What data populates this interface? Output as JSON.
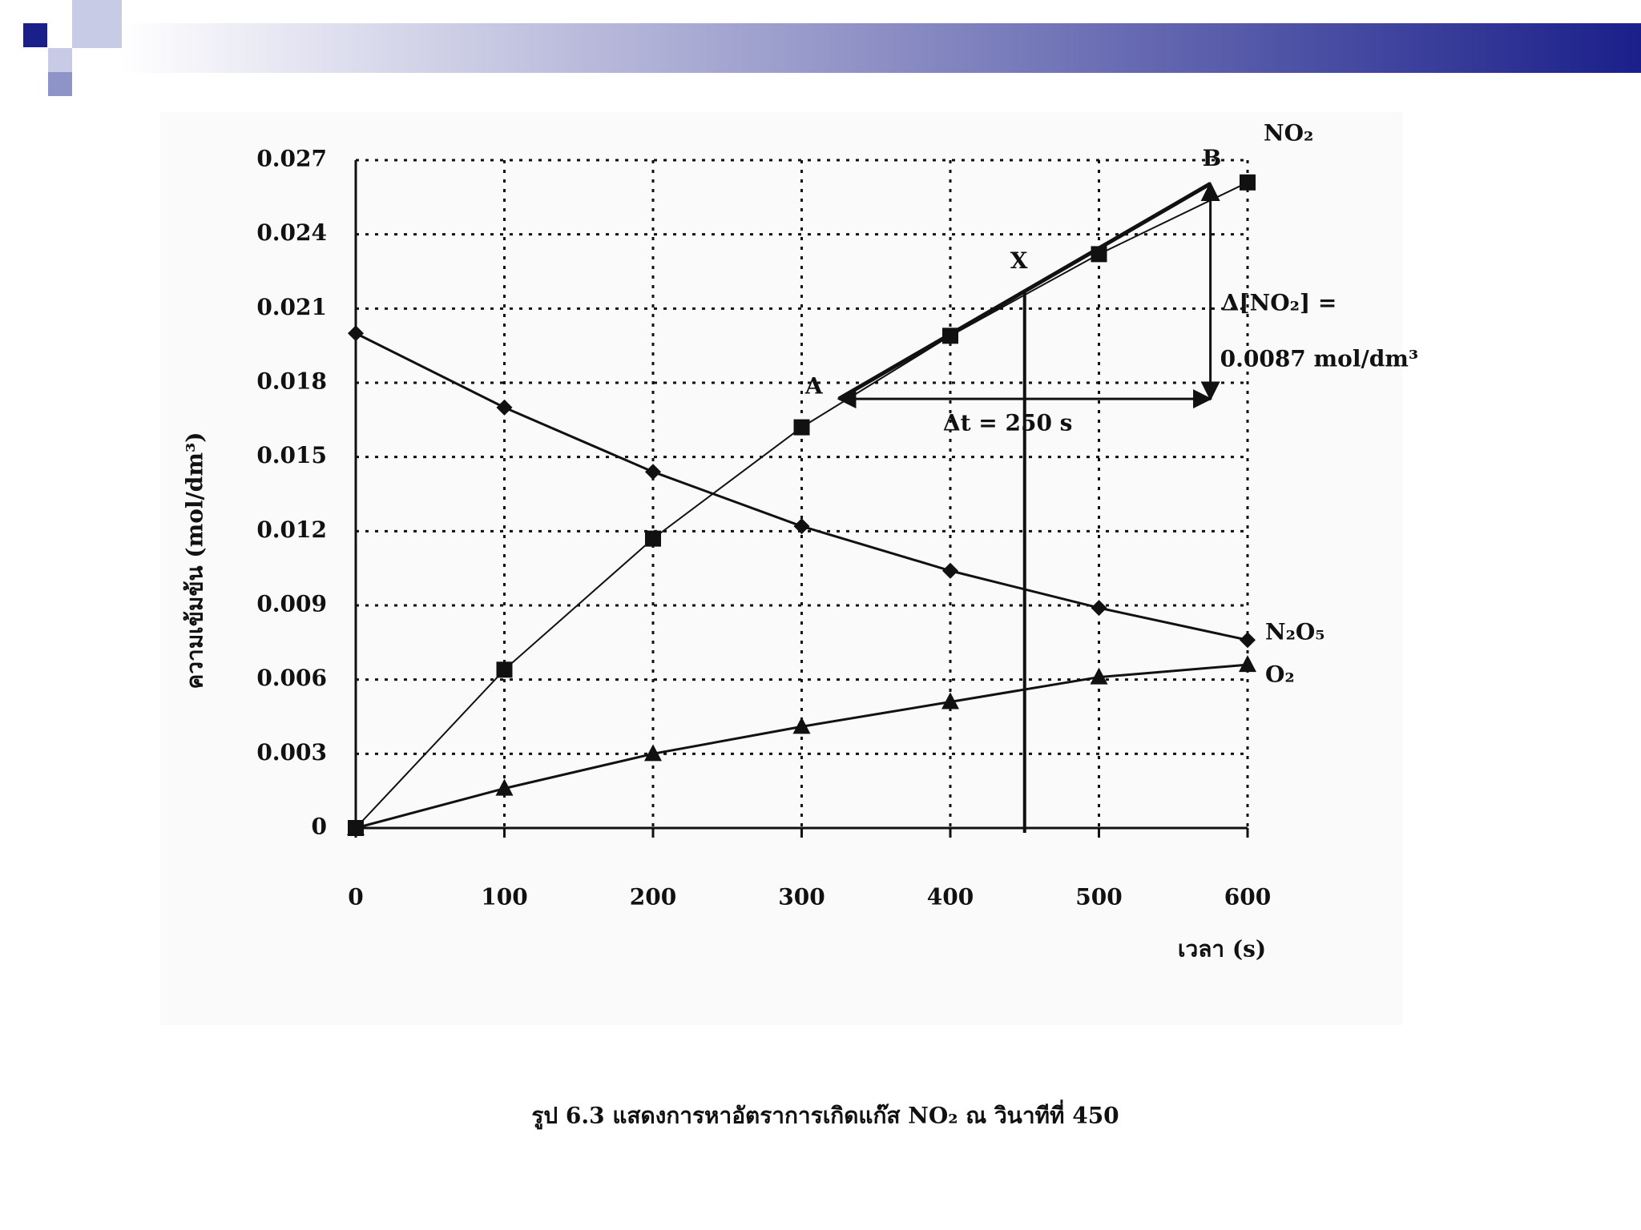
{
  "chart_data": {
    "type": "line",
    "caption": "รูป 6.3   แสดงการหาอัตราการเกิดแก๊ส NO₂ ณ วินาทีที่ 450",
    "x_label": "เวลา (s)",
    "y_label": "ความเข้มข้น (mol/dm³)",
    "x": [
      0,
      100,
      200,
      300,
      400,
      500,
      600
    ],
    "series": [
      {
        "name": "NO₂",
        "color": "#111111",
        "marker": "square",
        "values": [
          0,
          0.0064,
          0.0117,
          0.0162,
          0.0199,
          0.0232,
          0.0261
        ]
      },
      {
        "name": "N₂O₅",
        "color": "#111111",
        "marker": "diamond",
        "values": [
          0.02,
          0.017,
          0.0144,
          0.0122,
          0.0104,
          0.0089,
          0.0076
        ]
      },
      {
        "name": "O₂",
        "color": "#111111",
        "marker": "triangle",
        "values": [
          0,
          0.0016,
          0.003,
          0.0041,
          0.0051,
          0.0061,
          0.0066
        ]
      }
    ],
    "tangent": {
      "x": [
        325,
        575
      ],
      "y": [
        0.01735,
        0.02605
      ]
    },
    "marker_x": 450,
    "annotations": [
      "A",
      "B",
      "X",
      "Δ[NO₂] =",
      "0.0087 mol/dm³",
      "Δt = 250 s"
    ],
    "xlim": [
      0,
      600
    ],
    "xticks": [
      0,
      100,
      200,
      300,
      400,
      500,
      600
    ],
    "ylim": [
      0,
      0.027
    ],
    "yticks": [
      0,
      0.003,
      0.006,
      0.009,
      0.012,
      0.015,
      0.018,
      0.021,
      0.024,
      0.027
    ],
    "grid": true
  }
}
